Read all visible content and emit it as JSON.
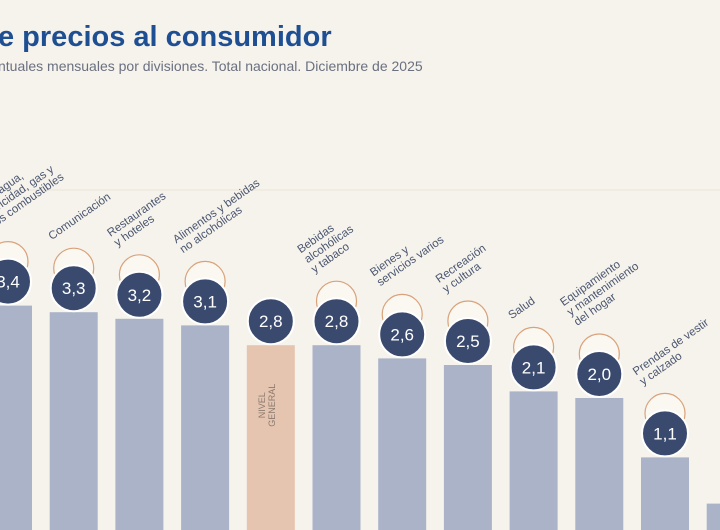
{
  "chart_data": {
    "type": "bar",
    "title": "e precios al consumidor",
    "subtitle": "ntuales mensuales por divisiones. Total nacional. Diciembre de 2025",
    "categories": [
      "ienda, agua,\nelectricidad, gas y\notros combustibles",
      "Comunicación",
      "Restaurantes\ny hoteles",
      "Alimentos y bebidas\nno alcohólicas",
      "NIVEL\nGENERAL",
      "Bebidas\nalcohólicas\ny tabaco",
      "Bienes y\nservicios varios",
      "Recreación\ny cultura",
      "Salud",
      "Equipamiento\ny mantenimiento\ndel hogar",
      "Prendas de vestir\ny calzado",
      null
    ],
    "values": [
      3.4,
      3.3,
      3.2,
      3.1,
      2.8,
      2.8,
      2.6,
      2.5,
      2.1,
      2.0,
      1.1,
      0.4
    ],
    "value_labels": [
      "3,4",
      "3,3",
      "3,2",
      "3,1",
      "2,8",
      "2,8",
      "2,6",
      "2,5",
      "2,1",
      "2,0",
      "1,1",
      null
    ],
    "color": "#aab3c8",
    "highlight_index": 4,
    "highlight_color": "#e6c5b0",
    "ylim": [
      0,
      4.5
    ]
  }
}
